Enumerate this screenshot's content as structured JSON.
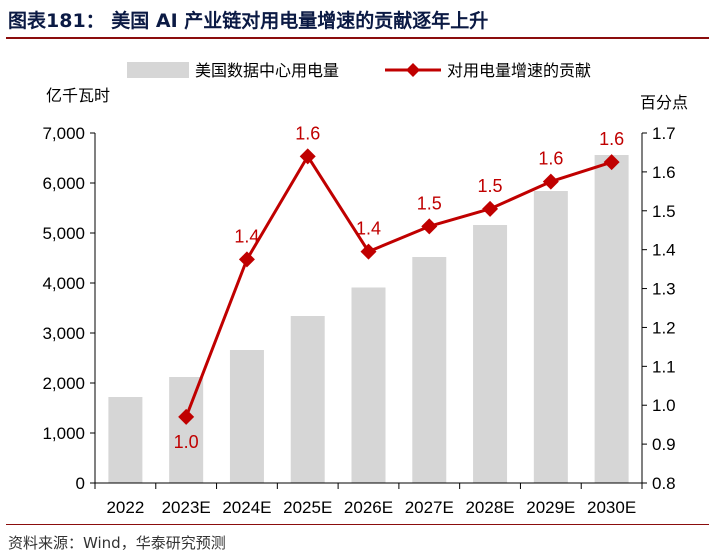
{
  "header": {
    "title": "图表181：  美国 AI 产业链对用电量增速的贡献逐年上升"
  },
  "footer": {
    "source": "资料来源：Wind，华泰研究预测"
  },
  "colors": {
    "bar": "#d6d6d6",
    "line": "#c00000",
    "title": "#0b1a44",
    "rule": "#8b0d0d"
  },
  "chart_data": {
    "type": "bar+line",
    "categories": [
      "2022",
      "2023E",
      "2024E",
      "2025E",
      "2026E",
      "2027E",
      "2028E",
      "2029E",
      "2030E"
    ],
    "left_axis": {
      "unit": "亿千瓦时",
      "range": [
        0,
        7000
      ],
      "ticks": [
        "0",
        "1,000",
        "2,000",
        "3,000",
        "4,000",
        "5,000",
        "6,000",
        "7,000"
      ]
    },
    "right_axis": {
      "unit": "百分点",
      "range": [
        0.8,
        1.7
      ],
      "ticks": [
        "0.8",
        "0.9",
        "1.0",
        "1.1",
        "1.2",
        "1.3",
        "1.4",
        "1.5",
        "1.6",
        "1.7"
      ]
    },
    "series": [
      {
        "name": "美国数据中心用电量",
        "type": "bar",
        "axis": "left",
        "values": [
          1720,
          2120,
          2660,
          3340,
          3910,
          4520,
          5160,
          5840,
          6560
        ]
      },
      {
        "name": "对用电量增速的贡献",
        "type": "line",
        "axis": "right",
        "values": [
          null,
          0.97,
          1.375,
          1.64,
          1.395,
          1.46,
          1.505,
          1.575,
          1.625
        ],
        "labels": [
          "",
          "1.0",
          "1.4",
          "1.6",
          "1.4",
          "1.5",
          "1.5",
          "1.6",
          "1.6"
        ]
      }
    ],
    "legend_position": "top",
    "grid": false
  }
}
